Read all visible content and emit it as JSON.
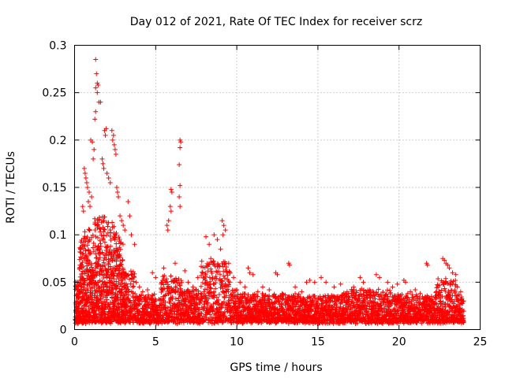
{
  "chart_data": {
    "type": "scatter",
    "title": "Day 012 of 2021, Rate Of TEC Index for receiver scrz",
    "xlabel": "GPS time / hours",
    "ylabel": "ROTI / TECUs",
    "xlim": [
      0,
      25
    ],
    "ylim": [
      0,
      0.3
    ],
    "x_ticks": [
      0,
      5,
      10,
      15,
      20,
      25
    ],
    "x_tick_labels": [
      "0",
      "5",
      "10",
      "15",
      "20",
      "25"
    ],
    "y_ticks": [
      0,
      0.05,
      0.1,
      0.15,
      0.2,
      0.25,
      0.3
    ],
    "y_tick_labels": [
      "0",
      "0.05",
      "0.1",
      "0.15",
      "0.2",
      "0.25",
      "0.3"
    ],
    "grid": true,
    "marker": "+",
    "color": "#ff0000",
    "series": [
      {
        "name": "ROTI",
        "x": [
          1.3,
          1.35,
          1.4,
          1.3,
          1.45,
          1.4,
          1.5,
          1.6,
          1.3,
          1.25,
          1.85,
          1.9,
          1.95,
          2.3,
          2.4,
          2.35,
          2.45,
          2.5,
          2.55,
          1.0,
          1.1,
          1.2,
          1.15,
          0.6,
          0.65,
          0.7,
          0.75,
          0.8,
          1.7,
          1.75,
          1.8,
          2.0,
          2.1,
          2.2,
          2.6,
          2.65,
          2.7,
          0.9,
          1.05,
          0.5,
          0.55,
          0.85,
          0.95,
          2.8,
          2.9,
          3.0,
          3.1,
          3.3,
          3.4,
          3.5,
          3.7,
          6.5,
          6.55,
          6.5,
          6.45,
          6.5,
          6.45,
          6.5,
          5.95,
          6.0,
          5.9,
          5.95,
          5.8,
          5.7,
          5.75,
          8.1,
          8.3,
          8.6,
          8.8,
          9.0,
          9.1,
          9.2,
          9.3,
          9.15,
          10.7,
          10.8,
          11.0,
          12.4,
          12.5,
          13.2,
          13.25,
          14.5,
          14.8,
          15.2,
          15.5,
          16.0,
          17.6,
          17.8,
          18.6,
          18.8,
          19.3,
          20.3,
          20.4,
          21.7,
          21.75,
          22.7,
          22.8,
          22.9,
          23.0,
          23.1,
          23.3,
          23.5,
          23.8,
          0.1,
          0.2,
          0.3,
          0.4,
          3.8,
          4.0,
          4.2,
          4.5,
          4.8,
          5.0,
          5.5,
          6.2,
          6.8,
          7.0,
          7.3,
          7.6,
          7.9,
          8.4,
          9.5,
          9.8,
          10.2,
          10.5,
          11.3,
          11.6,
          12.0,
          12.8,
          13.6,
          14.0,
          14.3,
          16.4,
          16.8,
          17.2,
          18.2,
          19.6,
          19.9,
          20.7,
          21.0,
          21.3,
          22.0,
          22.3,
          23.6
        ],
        "y": [
          0.285,
          0.27,
          0.26,
          0.255,
          0.258,
          0.25,
          0.24,
          0.24,
          0.23,
          0.222,
          0.21,
          0.205,
          0.212,
          0.21,
          0.205,
          0.2,
          0.195,
          0.19,
          0.185,
          0.2,
          0.198,
          0.19,
          0.18,
          0.17,
          0.165,
          0.16,
          0.155,
          0.15,
          0.18,
          0.175,
          0.17,
          0.165,
          0.16,
          0.155,
          0.15,
          0.145,
          0.14,
          0.145,
          0.14,
          0.13,
          0.125,
          0.135,
          0.13,
          0.12,
          0.115,
          0.11,
          0.105,
          0.135,
          0.12,
          0.1,
          0.09,
          0.2,
          0.198,
          0.192,
          0.174,
          0.152,
          0.14,
          0.13,
          0.148,
          0.145,
          0.13,
          0.125,
          0.115,
          0.11,
          0.105,
          0.098,
          0.09,
          0.1,
          0.095,
          0.085,
          0.115,
          0.11,
          0.105,
          0.1,
          0.065,
          0.06,
          0.058,
          0.06,
          0.058,
          0.07,
          0.068,
          0.052,
          0.05,
          0.055,
          0.05,
          0.045,
          0.055,
          0.05,
          0.058,
          0.055,
          0.05,
          0.052,
          0.05,
          0.07,
          0.068,
          0.075,
          0.073,
          0.07,
          0.068,
          0.065,
          0.06,
          0.058,
          0.04,
          0.03,
          0.035,
          0.04,
          0.045,
          0.05,
          0.045,
          0.04,
          0.042,
          0.06,
          0.055,
          0.065,
          0.07,
          0.062,
          0.05,
          0.045,
          0.055,
          0.06,
          0.075,
          0.07,
          0.055,
          0.05,
          0.045,
          0.04,
          0.045,
          0.042,
          0.038,
          0.045,
          0.04,
          0.05,
          0.048,
          0.04,
          0.045,
          0.042,
          0.045,
          0.048,
          0.04,
          0.042,
          0.038,
          0.035,
          0.04,
          0.045
        ],
        "baseline_note": "dense band of points from ~0.005 to ~0.04 across 0-24 h"
      }
    ]
  }
}
